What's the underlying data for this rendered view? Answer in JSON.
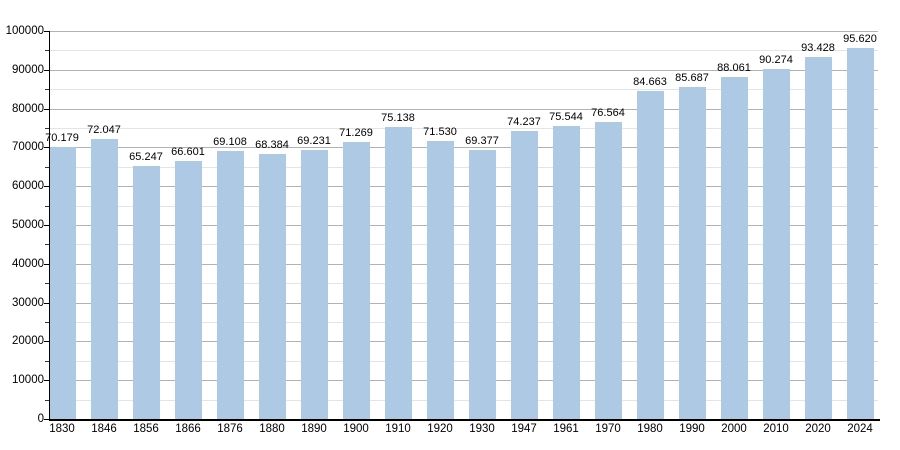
{
  "chart_data": {
    "type": "bar",
    "title": "",
    "xlabel": "",
    "ylabel": "",
    "categories": [
      "1830",
      "1846",
      "1856",
      "1866",
      "1876",
      "1880",
      "1890",
      "1900",
      "1910",
      "1920",
      "1930",
      "1947",
      "1961",
      "1970",
      "1980",
      "1990",
      "2000",
      "2010",
      "2020",
      "2024"
    ],
    "values": [
      70179,
      72047,
      65247,
      66601,
      69108,
      68384,
      69231,
      71269,
      75138,
      71530,
      69377,
      74237,
      75544,
      76564,
      84663,
      85687,
      88061,
      90274,
      93428,
      95620
    ],
    "value_labels": [
      "70.179",
      "72.047",
      "65.247",
      "66.601",
      "69.108",
      "68.384",
      "69.231",
      "71.269",
      "75.138",
      "71.530",
      "69.377",
      "74.237",
      "75.544",
      "76.564",
      "84.663",
      "85.687",
      "88.061",
      "90.274",
      "93.428",
      "95.620"
    ],
    "ylim": [
      0,
      100000
    ],
    "y_major_step": 10000,
    "y_minor_step": 5000,
    "y_tick_labels": [
      "0",
      "10000",
      "20000",
      "30000",
      "40000",
      "50000",
      "60000",
      "70000",
      "80000",
      "90000",
      "100000"
    ],
    "grid": "horizontal, major and minor lines",
    "legend": "none",
    "colors": {
      "bar": "#adc9e4",
      "grid_major": "#b2b2b2",
      "grid_minor": "#e4e4e4",
      "axis": "#000000",
      "text": "#000000",
      "background": "#ffffff"
    }
  }
}
